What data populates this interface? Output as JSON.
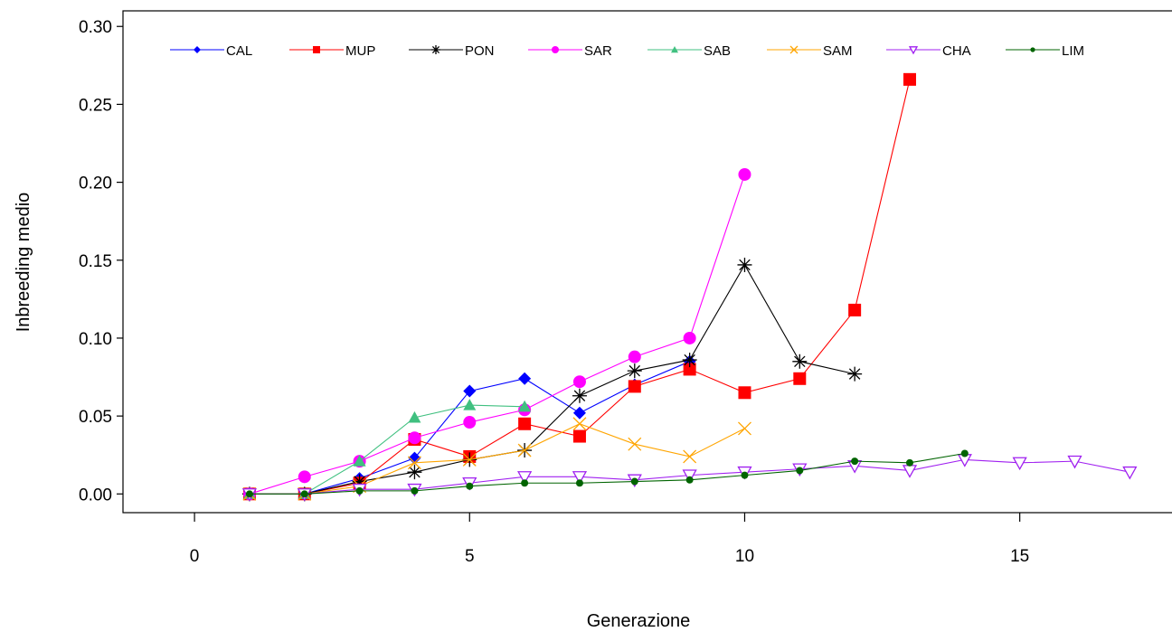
{
  "chart_data": {
    "type": "line",
    "title": "",
    "xlabel": "Generazione",
    "ylabel": "Inbreeding medio",
    "xlim": [
      -1.3,
      17.8
    ],
    "ylim": [
      -0.012,
      0.31
    ],
    "x_ticks": [
      0,
      5,
      10,
      15
    ],
    "x_tick_labels": [
      "0",
      "5",
      "10",
      "15"
    ],
    "y_ticks": [
      0.0,
      0.05,
      0.1,
      0.15,
      0.2,
      0.25,
      0.3
    ],
    "y_tick_labels": [
      "0.00",
      "0.05",
      "0.10",
      "0.15",
      "0.20",
      "0.25",
      "0.30"
    ],
    "grid": false,
    "legend_position": "top",
    "series": [
      {
        "name": "CAL",
        "color": "#0000ff",
        "marker": "diamond",
        "x": [
          1,
          2,
          3,
          4,
          5,
          6,
          7,
          8,
          9
        ],
        "y": [
          0.0,
          0.0,
          0.01,
          0.023,
          0.066,
          0.074,
          0.052,
          0.07,
          0.085
        ]
      },
      {
        "name": "MUP",
        "color": "#ff0000",
        "marker": "square",
        "x": [
          1,
          2,
          3,
          4,
          5,
          6,
          7,
          8,
          9,
          10,
          11,
          12,
          13
        ],
        "y": [
          0.0,
          0.0,
          0.007,
          0.035,
          0.024,
          0.045,
          0.037,
          0.069,
          0.08,
          0.065,
          0.074,
          0.118,
          0.266
        ]
      },
      {
        "name": "PON",
        "color": "#000000",
        "marker": "star",
        "x": [
          1,
          2,
          3,
          4,
          5,
          6,
          7,
          8,
          9,
          10,
          11,
          12
        ],
        "y": [
          0.0,
          0.0,
          0.008,
          0.014,
          0.022,
          0.028,
          0.063,
          0.079,
          0.086,
          0.147,
          0.085,
          0.077
        ]
      },
      {
        "name": "SAR",
        "color": "#ff00ff",
        "marker": "circle",
        "x": [
          1,
          2,
          3,
          4,
          5,
          6,
          7,
          8,
          9,
          10
        ],
        "y": [
          0.0,
          0.011,
          0.021,
          0.036,
          0.046,
          0.054,
          0.072,
          0.088,
          0.1,
          0.205
        ]
      },
      {
        "name": "SAB",
        "color": "#40c080",
        "marker": "triangle",
        "x": [
          1,
          2,
          3,
          4,
          5,
          6
        ],
        "y": [
          0.0,
          0.0,
          0.021,
          0.049,
          0.057,
          0.056
        ]
      },
      {
        "name": "SAM",
        "color": "#ffa500",
        "marker": "x",
        "x": [
          1,
          2,
          3,
          4,
          5,
          6,
          7,
          8,
          9,
          10
        ],
        "y": [
          0.0,
          0.0,
          0.005,
          0.02,
          0.022,
          0.028,
          0.045,
          0.032,
          0.024,
          0.042
        ]
      },
      {
        "name": "CHA",
        "color": "#a020f0",
        "marker": "triangle-down",
        "x": [
          1,
          2,
          3,
          4,
          5,
          6,
          7,
          8,
          9,
          10,
          11,
          12,
          13,
          14,
          15,
          16,
          17
        ],
        "y": [
          0.0,
          0.0,
          0.003,
          0.003,
          0.007,
          0.011,
          0.011,
          0.009,
          0.012,
          0.014,
          0.016,
          0.018,
          0.015,
          0.022,
          0.02,
          0.021,
          0.014
        ]
      },
      {
        "name": "LIM",
        "color": "#006400",
        "marker": "dot",
        "x": [
          1,
          2,
          3,
          4,
          5,
          6,
          7,
          8,
          9,
          10,
          11,
          12,
          13,
          14
        ],
        "y": [
          0.0,
          0.0,
          0.002,
          0.002,
          0.005,
          0.007,
          0.007,
          0.008,
          0.009,
          0.012,
          0.015,
          0.021,
          0.02,
          0.026
        ]
      }
    ]
  }
}
